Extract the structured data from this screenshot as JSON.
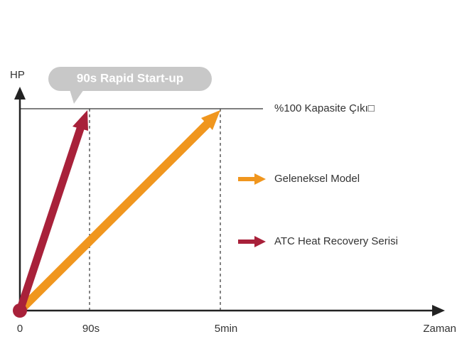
{
  "y_axis_label": "HP",
  "x_axis_label": "Zaman",
  "callout": "90s Rapid Start-up",
  "capacity_label": "%100 Kapasite Çıkı□",
  "x_labels": [
    "0",
    "90s",
    "5min"
  ],
  "legend": [
    "Geleneksel Model",
    "ATC Heat Recovery Serisi"
  ]
}
